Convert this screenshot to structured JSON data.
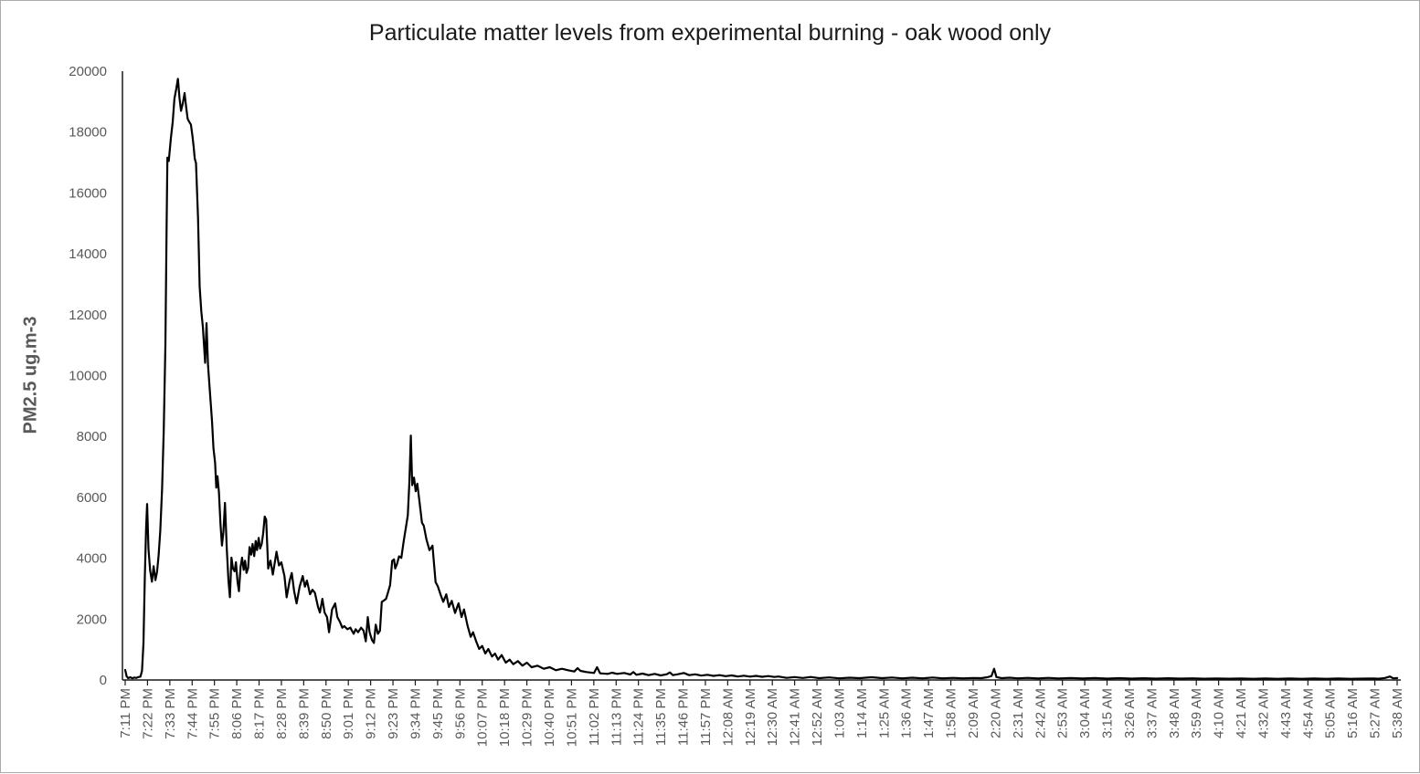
{
  "figure": {
    "background": "#ffffff",
    "border_color": "#ababab"
  },
  "chart_data": {
    "type": "line",
    "title": "Particulate matter levels from experimental burning - oak wood only",
    "xlabel": "",
    "ylabel": "PM2.5 ug.m-3",
    "legend": "none",
    "grid": "off",
    "line_color": "#000000",
    "axis_color": "#1a1a1a",
    "tick_label_color": "#595959",
    "title_color": "#1a1a1a",
    "ylim": [
      0,
      20000
    ],
    "y_ticks": [
      0,
      2000,
      4000,
      6000,
      8000,
      10000,
      12000,
      14000,
      16000,
      18000,
      20000
    ],
    "x_minutes_per_tick": 11,
    "x_range_minutes": [
      0,
      627
    ],
    "x_tick_labels": [
      "7:11 PM",
      "7:22 PM",
      "7:33 PM",
      "7:44 PM",
      "7:55 PM",
      "8:06 PM",
      "8:17 PM",
      "8:28 PM",
      "8:39 PM",
      "8:50 PM",
      "9:01 PM",
      "9:12 PM",
      "9:23 PM",
      "9:34 PM",
      "9:45 PM",
      "9:56 PM",
      "10:07 PM",
      "10:18 PM",
      "10:29 PM",
      "10:40 PM",
      "10:51 PM",
      "11:02 PM",
      "11:13 PM",
      "11:24 PM",
      "11:35 PM",
      "11:46 PM",
      "11:57 PM",
      "12:08 AM",
      "12:19 AM",
      "12:30 AM",
      "12:41 AM",
      "12:52 AM",
      "1:03 AM",
      "1:14 AM",
      "1:25 AM",
      "1:36 AM",
      "1:47 AM",
      "1:58 AM",
      "2:09 AM",
      "2:20 AM",
      "2:31 AM",
      "2:42 AM",
      "2:53 AM",
      "3:04 AM",
      "3:15 AM",
      "3:26 AM",
      "3:37 AM",
      "3:48 AM",
      "3:59 AM",
      "4:10 AM",
      "4:21 AM",
      "4:32 AM",
      "4:43 AM",
      "4:54 AM",
      "5:05 AM",
      "5:16 AM",
      "5:27 AM",
      "5:38 AM"
    ],
    "series": [
      {
        "name": "PM2.5",
        "points_t_minutes_value": [
          [
            0,
            330
          ],
          [
            0.7,
            120
          ],
          [
            1.5,
            60
          ],
          [
            2.5,
            90
          ],
          [
            3.5,
            55
          ],
          [
            4.5,
            80
          ],
          [
            5.5,
            65
          ],
          [
            6.5,
            95
          ],
          [
            7.5,
            110
          ],
          [
            8.3,
            300
          ],
          [
            9,
            1200
          ],
          [
            9.7,
            3400
          ],
          [
            10.3,
            5000
          ],
          [
            10.8,
            5780
          ],
          [
            11.5,
            4300
          ],
          [
            12.3,
            3600
          ],
          [
            13.2,
            3230
          ],
          [
            14,
            3740
          ],
          [
            14.9,
            3280
          ],
          [
            15.7,
            3560
          ],
          [
            16.5,
            4100
          ],
          [
            17.3,
            4900
          ],
          [
            18.2,
            6300
          ],
          [
            19,
            8200
          ],
          [
            19.8,
            11000
          ],
          [
            20.4,
            14800
          ],
          [
            20.8,
            17160
          ],
          [
            21.5,
            17050
          ],
          [
            22.5,
            17800
          ],
          [
            23.4,
            18330
          ],
          [
            24.3,
            19100
          ],
          [
            25.2,
            19420
          ],
          [
            26,
            19750
          ],
          [
            26.8,
            19100
          ],
          [
            27.5,
            18700
          ],
          [
            28.4,
            18950
          ],
          [
            29.3,
            19280
          ],
          [
            30.1,
            18800
          ],
          [
            30.8,
            18430
          ],
          [
            31.6,
            18330
          ],
          [
            32.4,
            18250
          ],
          [
            33.1,
            17900
          ],
          [
            33.8,
            17500
          ],
          [
            34.3,
            17130
          ],
          [
            34.9,
            16980
          ],
          [
            35.9,
            15200
          ],
          [
            36.7,
            12920
          ],
          [
            37.5,
            12110
          ],
          [
            38.3,
            11600
          ],
          [
            39.4,
            10420
          ],
          [
            40.1,
            11720
          ],
          [
            40.8,
            10370
          ],
          [
            41.6,
            9600
          ],
          [
            42.8,
            8515
          ],
          [
            43.5,
            7616
          ],
          [
            44.3,
            7136
          ],
          [
            44.9,
            6317
          ],
          [
            45.5,
            6695
          ],
          [
            46.2,
            6167
          ],
          [
            47,
            5118
          ],
          [
            47.7,
            4417
          ],
          [
            48.4,
            4867
          ],
          [
            49.2,
            5817
          ],
          [
            50.1,
            4300
          ],
          [
            50.9,
            3268
          ],
          [
            51.6,
            2719
          ],
          [
            52.4,
            4018
          ],
          [
            53.1,
            3667
          ],
          [
            53.9,
            3568
          ],
          [
            54.6,
            3867
          ],
          [
            55.4,
            3218
          ],
          [
            56.1,
            2918
          ],
          [
            56.9,
            3718
          ],
          [
            57.6,
            4018
          ],
          [
            58.4,
            3618
          ],
          [
            59.1,
            3918
          ],
          [
            59.8,
            3518
          ],
          [
            60.6,
            3680
          ],
          [
            61.3,
            4367
          ],
          [
            62.1,
            4117
          ],
          [
            62.8,
            4467
          ],
          [
            63.6,
            4068
          ],
          [
            64.3,
            4567
          ],
          [
            65,
            4267
          ],
          [
            65.8,
            4667
          ],
          [
            66.5,
            4317
          ],
          [
            67.3,
            4467
          ],
          [
            68,
            4817
          ],
          [
            68.8,
            5367
          ],
          [
            69.5,
            5267
          ],
          [
            70.5,
            3662
          ],
          [
            71.6,
            3922
          ],
          [
            72.8,
            3464
          ],
          [
            74.6,
            4213
          ],
          [
            75.8,
            3764
          ],
          [
            77,
            3864
          ],
          [
            78.5,
            3414
          ],
          [
            79.6,
            2716
          ],
          [
            81.1,
            3264
          ],
          [
            82.1,
            3514
          ],
          [
            83.3,
            2915
          ],
          [
            84.5,
            2516
          ],
          [
            86,
            3065
          ],
          [
            87.5,
            3414
          ],
          [
            88.6,
            3065
          ],
          [
            89.6,
            3264
          ],
          [
            91.1,
            2815
          ],
          [
            92.3,
            2965
          ],
          [
            93.5,
            2866
          ],
          [
            95,
            2417
          ],
          [
            96,
            2217
          ],
          [
            97.2,
            2666
          ],
          [
            98.3,
            2217
          ],
          [
            99.5,
            2067
          ],
          [
            100.5,
            1568
          ],
          [
            102,
            2317
          ],
          [
            103.5,
            2516
          ],
          [
            104.6,
            2067
          ],
          [
            105.8,
            1917
          ],
          [
            107,
            1717
          ],
          [
            108,
            1768
          ],
          [
            109.5,
            1668
          ],
          [
            111,
            1717
          ],
          [
            112.6,
            1518
          ],
          [
            113.6,
            1668
          ],
          [
            114.8,
            1568
          ],
          [
            116.3,
            1717
          ],
          [
            117.5,
            1618
          ],
          [
            118.6,
            1268
          ],
          [
            119.6,
            2067
          ],
          [
            120.5,
            1568
          ],
          [
            121.6,
            1318
          ],
          [
            122.6,
            1218
          ],
          [
            123.5,
            1818
          ],
          [
            124.6,
            1518
          ],
          [
            125.6,
            1618
          ],
          [
            126.5,
            2566
          ],
          [
            127.6,
            2616
          ],
          [
            128.6,
            2666
          ],
          [
            129.5,
            2866
          ],
          [
            130.6,
            3114
          ],
          [
            131.6,
            3913
          ],
          [
            132.5,
            3963
          ],
          [
            133.1,
            3664
          ],
          [
            134,
            3813
          ],
          [
            135,
            4063
          ],
          [
            136.1,
            4013
          ],
          [
            137.3,
            4562
          ],
          [
            138.5,
            5065
          ],
          [
            139.3,
            5415
          ],
          [
            140.1,
            6500
          ],
          [
            140.8,
            8030
          ],
          [
            141.5,
            6400
          ],
          [
            142.4,
            6650
          ],
          [
            143.2,
            6200
          ],
          [
            144,
            6450
          ],
          [
            145,
            5900
          ],
          [
            146.3,
            5165
          ],
          [
            147.2,
            5065
          ],
          [
            148.5,
            4615
          ],
          [
            150,
            4264
          ],
          [
            151.5,
            4415
          ],
          [
            153,
            3214
          ],
          [
            154.2,
            3065
          ],
          [
            155.5,
            2800
          ],
          [
            156.8,
            2566
          ],
          [
            158.3,
            2815
          ],
          [
            159.6,
            2400
          ],
          [
            161,
            2600
          ],
          [
            162.6,
            2200
          ],
          [
            164.3,
            2519
          ],
          [
            165.8,
            2069
          ],
          [
            167,
            2318
          ],
          [
            168.8,
            1769
          ],
          [
            170.3,
            1418
          ],
          [
            171.5,
            1568
          ],
          [
            173,
            1268
          ],
          [
            174.5,
            1019
          ],
          [
            176,
            1119
          ],
          [
            177.5,
            869
          ],
          [
            179,
            1019
          ],
          [
            180.8,
            770
          ],
          [
            182.3,
            869
          ],
          [
            183.8,
            668
          ],
          [
            185.6,
            818
          ],
          [
            187.6,
            569
          ],
          [
            189.5,
            668
          ],
          [
            191.3,
            519
          ],
          [
            193.6,
            620
          ],
          [
            195.8,
            470
          ],
          [
            198,
            569
          ],
          [
            200.3,
            420
          ],
          [
            203.3,
            470
          ],
          [
            206.3,
            369
          ],
          [
            209.3,
            420
          ],
          [
            212.3,
            320
          ],
          [
            215.3,
            369
          ],
          [
            218.3,
            320
          ],
          [
            221.4,
            280
          ],
          [
            223,
            390
          ],
          [
            224.4,
            300
          ],
          [
            227.4,
            260
          ],
          [
            231.1,
            230
          ],
          [
            232.6,
            420
          ],
          [
            234.1,
            219
          ],
          [
            237.9,
            200
          ],
          [
            240,
            240
          ],
          [
            242.4,
            200
          ],
          [
            246,
            230
          ],
          [
            249,
            180
          ],
          [
            250.5,
            260
          ],
          [
            252,
            170
          ],
          [
            255,
            210
          ],
          [
            258,
            160
          ],
          [
            261,
            200
          ],
          [
            264,
            150
          ],
          [
            267,
            190
          ],
          [
            268.5,
            250
          ],
          [
            270,
            160
          ],
          [
            272.5,
            190
          ],
          [
            275.4,
            230
          ],
          [
            278,
            160
          ],
          [
            281,
            185
          ],
          [
            284,
            145
          ],
          [
            287,
            170
          ],
          [
            290,
            135
          ],
          [
            293,
            160
          ],
          [
            296,
            125
          ],
          [
            299,
            150
          ],
          [
            302,
            115
          ],
          [
            305,
            140
          ],
          [
            308,
            110
          ],
          [
            311,
            135
          ],
          [
            314,
            105
          ],
          [
            317,
            130
          ],
          [
            320,
            100
          ],
          [
            322,
            115
          ],
          [
            326,
            70
          ],
          [
            330,
            95
          ],
          [
            334,
            65
          ],
          [
            338,
            100
          ],
          [
            342,
            60
          ],
          [
            347,
            85
          ],
          [
            352,
            55
          ],
          [
            357,
            75
          ],
          [
            362,
            60
          ],
          [
            368,
            90
          ],
          [
            373,
            60
          ],
          [
            378,
            80
          ],
          [
            383,
            55
          ],
          [
            388,
            75
          ],
          [
            393,
            55
          ],
          [
            398,
            80
          ],
          [
            403,
            55
          ],
          [
            408,
            70
          ],
          [
            413,
            55
          ],
          [
            418,
            65
          ],
          [
            422,
            60
          ],
          [
            425,
            90
          ],
          [
            427,
            130
          ],
          [
            428.3,
            370
          ],
          [
            429.5,
            95
          ],
          [
            432,
            60
          ],
          [
            436,
            75
          ],
          [
            440,
            55
          ],
          [
            445,
            70
          ],
          [
            450,
            52
          ],
          [
            455,
            68
          ],
          [
            460,
            50
          ],
          [
            466,
            65
          ],
          [
            472,
            48
          ],
          [
            478,
            62
          ],
          [
            484,
            46
          ],
          [
            490,
            60
          ],
          [
            496,
            45
          ],
          [
            502,
            58
          ],
          [
            508,
            44
          ],
          [
            514,
            56
          ],
          [
            520,
            44
          ],
          [
            526,
            54
          ],
          [
            532,
            42
          ],
          [
            538,
            52
          ],
          [
            544,
            42
          ],
          [
            550,
            52
          ],
          [
            556,
            40
          ],
          [
            562,
            50
          ],
          [
            568,
            40
          ],
          [
            574,
            50
          ],
          [
            580,
            38
          ],
          [
            586,
            48
          ],
          [
            592,
            38
          ],
          [
            598,
            48
          ],
          [
            604,
            40
          ],
          [
            610,
            45
          ],
          [
            615,
            52
          ],
          [
            618,
            42
          ],
          [
            621,
            65
          ],
          [
            623.5,
            115
          ],
          [
            625,
            55
          ],
          [
            627,
            62
          ]
        ]
      }
    ]
  }
}
